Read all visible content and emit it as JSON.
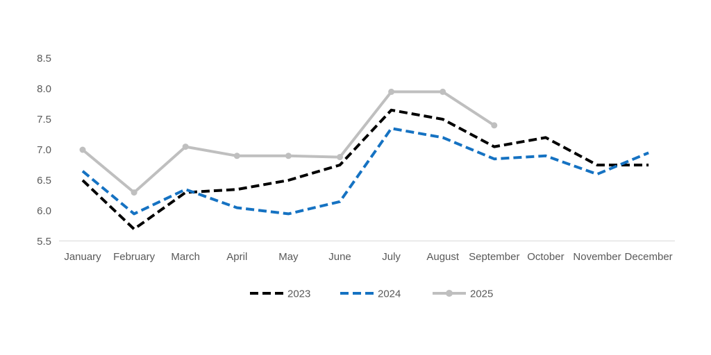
{
  "chart_data": {
    "type": "line",
    "title": "",
    "xlabel": "",
    "ylabel": "",
    "categories": [
      "January",
      "February",
      "March",
      "April",
      "May",
      "June",
      "July",
      "August",
      "September",
      "October",
      "November",
      "December"
    ],
    "series": [
      {
        "name": "2023",
        "color": "#000000",
        "line_style": "dashed",
        "marker": "none",
        "values": [
          6.5,
          5.7,
          6.3,
          6.35,
          6.5,
          6.75,
          7.65,
          7.5,
          7.05,
          7.2,
          6.75,
          6.75
        ]
      },
      {
        "name": "2024",
        "color": "#1572C2",
        "line_style": "dashed",
        "marker": "none",
        "values": [
          6.65,
          5.95,
          6.35,
          6.05,
          5.95,
          6.15,
          7.35,
          7.2,
          6.85,
          6.9,
          6.6,
          6.95
        ]
      },
      {
        "name": "2025",
        "color": "#BFBFBF",
        "line_style": "solid",
        "marker": "circle",
        "values": [
          7.0,
          6.3,
          7.05,
          6.9,
          6.9,
          6.88,
          7.95,
          7.95,
          7.4,
          null,
          null,
          null
        ]
      }
    ],
    "ylim": [
      5.5,
      8.5
    ],
    "yticks": [
      8.5,
      8.0,
      7.5,
      7.0,
      6.5,
      6.0,
      5.5
    ],
    "ytick_labels": [
      "8.5",
      "8.0",
      "7.5",
      "7.0",
      "6.5",
      "6.0",
      "5.5"
    ],
    "grid": false,
    "legend_position": "bottom",
    "legend_entries": [
      "2023",
      "2024",
      "2025"
    ],
    "colors": {
      "axis_line": "#D9D9D9",
      "label_text": "#595959",
      "background": "#FFFFFF"
    }
  }
}
